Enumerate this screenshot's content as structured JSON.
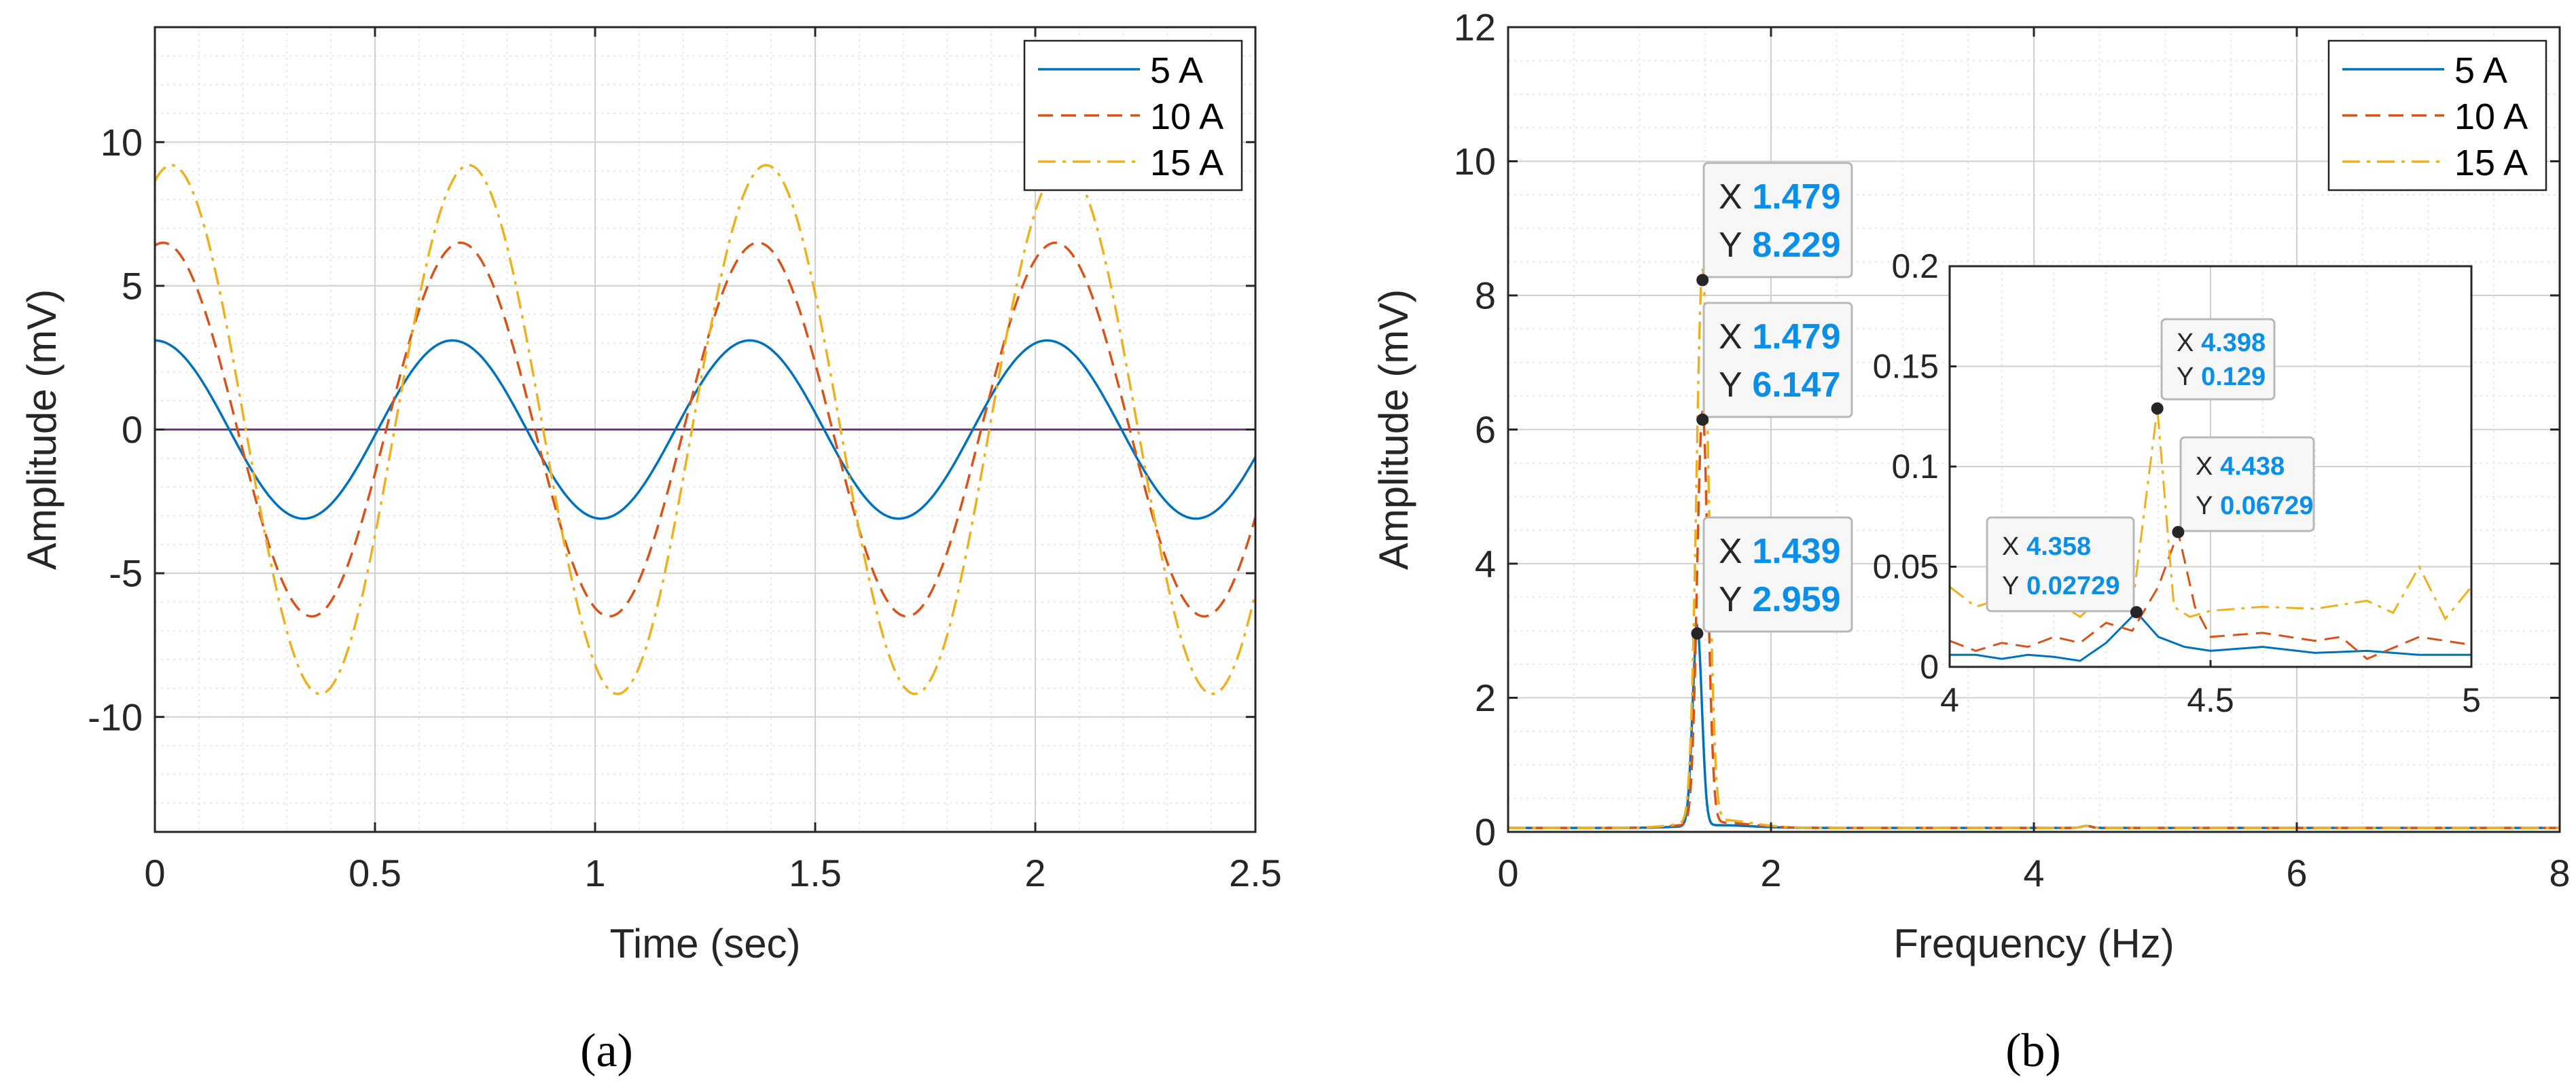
{
  "colors": {
    "series_5A": "#0072BD",
    "series_10A": "#D95319",
    "series_15A": "#EDB120",
    "zero_line": "#7E2F8E",
    "datatip_value": "#0A8FE8",
    "grid_major": "#d0d0d0",
    "grid_minor": "#e6e6e6"
  },
  "chart_data": [
    {
      "id": "a",
      "type": "line",
      "caption": "(a)",
      "xlabel": "Time (sec)",
      "ylabel": "Amplitude (mV)",
      "xlim": [
        0,
        2.5
      ],
      "ylim": [
        -14,
        14
      ],
      "xticks": [
        0,
        0.5,
        1,
        1.5,
        2,
        2.5
      ],
      "xtick_labels": [
        "0",
        "0.5",
        "1",
        "1.5",
        "2",
        "2.5"
      ],
      "yticks": [
        -10,
        -5,
        0,
        5,
        10
      ],
      "ytick_labels": [
        "-10",
        "-5",
        "0",
        "5",
        "10"
      ],
      "grid": true,
      "minor_grid": true,
      "legend_position": "top-right",
      "legend": [
        "5 A",
        "10 A",
        "15 A"
      ],
      "reference_line": {
        "y": 0,
        "label": ""
      },
      "signal_model": {
        "frequency_hz": 1.48,
        "t_start": 0,
        "t_end": 2.5
      },
      "series": [
        {
          "name": "5 A",
          "amplitude": 3.1,
          "phase_deg": 90,
          "style": "solid"
        },
        {
          "name": "10 A",
          "amplitude": 6.5,
          "phase_deg": 80,
          "style": "dashed"
        },
        {
          "name": "15 A",
          "amplitude": 9.2,
          "phase_deg": 70,
          "style": "dashdot"
        }
      ]
    },
    {
      "id": "b",
      "type": "line",
      "caption": "(b)",
      "xlabel": "Frequency (Hz)",
      "ylabel": "Amplitude (mV)",
      "xlim": [
        0,
        8
      ],
      "ylim": [
        0,
        12
      ],
      "xticks": [
        0,
        2,
        4,
        6,
        8
      ],
      "xtick_labels": [
        "0",
        "2",
        "4",
        "6",
        "8"
      ],
      "yticks": [
        0,
        2,
        4,
        6,
        8,
        10,
        12
      ],
      "ytick_labels": [
        "0",
        "2",
        "4",
        "6",
        "8",
        "10",
        "12"
      ],
      "grid": true,
      "minor_grid": true,
      "legend_position": "top-right",
      "legend": [
        "5 A",
        "10 A",
        "15 A"
      ],
      "series": [
        {
          "name": "5 A",
          "style": "solid",
          "peak_x": 1.439,
          "peak_y": 2.959
        },
        {
          "name": "10 A",
          "style": "dashed",
          "peak_x": 1.479,
          "peak_y": 6.147
        },
        {
          "name": "15 A",
          "style": "dashdot",
          "peak_x": 1.479,
          "peak_y": 8.229
        }
      ],
      "datatips": [
        {
          "x": 1.479,
          "y": 8.229,
          "x_label": "X",
          "y_label": "Y",
          "x_text": "1.479",
          "y_text": "8.229"
        },
        {
          "x": 1.479,
          "y": 6.147,
          "x_label": "X",
          "y_label": "Y",
          "x_text": "1.479",
          "y_text": "6.147"
        },
        {
          "x": 1.439,
          "y": 2.959,
          "x_label": "X",
          "y_label": "Y",
          "x_text": "1.439",
          "y_text": "2.959"
        }
      ],
      "inset": {
        "xlim": [
          4,
          5
        ],
        "ylim": [
          0,
          0.2
        ],
        "xticks": [
          4,
          4.5,
          5
        ],
        "xtick_labels": [
          "4",
          "4.5",
          "5"
        ],
        "yticks": [
          0,
          0.05,
          0.1,
          0.15,
          0.2
        ],
        "ytick_labels": [
          "0",
          "0.05",
          "0.1",
          "0.15",
          "0.2"
        ],
        "grid": true,
        "series": [
          {
            "name": "5 A",
            "style": "solid",
            "x": [
              4.0,
              4.05,
              4.1,
              4.15,
              4.2,
              4.25,
              4.3,
              4.358,
              4.4,
              4.45,
              4.5,
              4.6,
              4.7,
              4.8,
              4.9,
              5.0
            ],
            "y": [
              0.006,
              0.006,
              0.004,
              0.006,
              0.005,
              0.003,
              0.012,
              0.02729,
              0.015,
              0.01,
              0.008,
              0.01,
              0.007,
              0.008,
              0.006,
              0.006
            ]
          },
          {
            "name": "10 A",
            "style": "dashed",
            "x": [
              4.0,
              4.05,
              4.1,
              4.15,
              4.2,
              4.25,
              4.3,
              4.35,
              4.4,
              4.438,
              4.47,
              4.5,
              4.6,
              4.7,
              4.75,
              4.8,
              4.9,
              5.0
            ],
            "y": [
              0.013,
              0.008,
              0.012,
              0.01,
              0.015,
              0.012,
              0.022,
              0.018,
              0.04,
              0.06729,
              0.03,
              0.015,
              0.017,
              0.013,
              0.015,
              0.004,
              0.015,
              0.011
            ]
          },
          {
            "name": "15 A",
            "style": "dashdot",
            "x": [
              4.0,
              4.05,
              4.1,
              4.15,
              4.2,
              4.25,
              4.3,
              4.35,
              4.398,
              4.43,
              4.46,
              4.5,
              4.6,
              4.7,
              4.8,
              4.85,
              4.9,
              4.95,
              5.0
            ],
            "y": [
              0.04,
              0.03,
              0.034,
              0.028,
              0.033,
              0.025,
              0.037,
              0.03,
              0.129,
              0.03,
              0.025,
              0.028,
              0.03,
              0.029,
              0.033,
              0.027,
              0.05,
              0.024,
              0.04
            ]
          }
        ],
        "datatips": [
          {
            "x": 4.398,
            "y": 0.129,
            "x_label": "X",
            "y_label": "Y",
            "x_text": "4.398",
            "y_text": "0.129"
          },
          {
            "x": 4.438,
            "y": 0.06729,
            "x_label": "X",
            "y_label": "Y",
            "x_text": "4.438",
            "y_text": "0.06729"
          },
          {
            "x": 4.358,
            "y": 0.02729,
            "x_label": "X",
            "y_label": "Y",
            "x_text": "4.358",
            "y_text": "0.02729"
          }
        ]
      }
    }
  ]
}
